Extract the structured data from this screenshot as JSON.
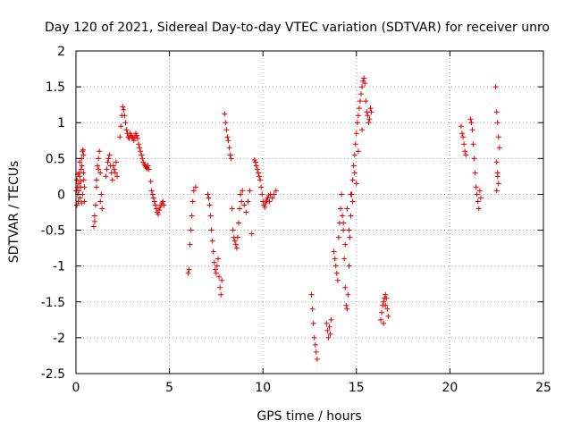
{
  "chart_data": {
    "type": "scatter",
    "title": "Day 120 of 2021, Sidereal Day-to-day VTEC variation (SDTVAR) for receiver unro",
    "xlabel": "GPS time / hours",
    "ylabel": "SDTVAR / TECUs",
    "xlim": [
      0,
      25
    ],
    "ylim": [
      -2.5,
      2
    ],
    "xticks": [
      0,
      5,
      10,
      15,
      20,
      25
    ],
    "yticks": [
      -2.5,
      -2,
      -1.5,
      -1,
      -0.5,
      0,
      0.5,
      1,
      1.5,
      2
    ],
    "xtick_labels": [
      "0",
      "5",
      "10",
      "15",
      "20",
      "25"
    ],
    "ytick_labels": [
      "-2.5",
      "-2",
      "-1.5",
      "-1",
      "-0.5",
      "0",
      "0.5",
      "1",
      "1.5",
      "2"
    ],
    "grid": true,
    "marker": "plus",
    "color": "#e00000",
    "series": [
      {
        "name": "SDTVAR",
        "x": [
          0.02,
          0.05,
          0.08,
          0.1,
          0.12,
          0.15,
          0.18,
          0.2,
          0.22,
          0.25,
          0.28,
          0.3,
          0.32,
          0.35,
          0.38,
          0.4,
          0.42,
          0.45,
          0.05,
          0.1,
          0.15,
          0.2,
          0.25,
          0.3,
          0.35,
          0.4,
          0.45,
          0.95,
          1.0,
          1.05,
          1.1,
          1.15,
          1.2,
          1.25,
          1.3,
          1.35,
          1.4,
          1.0,
          1.1,
          1.2,
          1.3,
          1.6,
          1.65,
          1.7,
          1.75,
          1.8,
          1.85,
          1.9,
          1.95,
          2.0,
          2.05,
          2.1,
          2.15,
          2.2,
          2.35,
          2.4,
          2.45,
          2.5,
          2.55,
          2.6,
          2.65,
          2.7,
          2.75,
          2.8,
          2.85,
          2.9,
          2.95,
          3.0,
          3.05,
          3.1,
          3.15,
          3.2,
          3.25,
          3.3,
          3.35,
          3.4,
          3.45,
          3.5,
          3.55,
          3.6,
          3.65,
          3.7,
          3.75,
          3.8,
          3.85,
          3.9,
          4.0,
          4.05,
          4.1,
          4.15,
          4.2,
          4.25,
          4.3,
          4.35,
          4.4,
          4.45,
          4.5,
          4.55,
          4.6,
          4.65,
          4.7,
          6.0,
          6.05,
          6.1,
          6.15,
          6.2,
          6.25,
          6.3,
          6.4,
          7.05,
          7.1,
          7.15,
          7.2,
          7.25,
          7.3,
          7.35,
          7.4,
          7.45,
          7.5,
          7.55,
          7.6,
          7.65,
          7.7,
          7.75,
          7.8,
          7.95,
          8.0,
          8.05,
          8.1,
          8.15,
          8.2,
          8.25,
          8.3,
          8.35,
          8.4,
          8.45,
          8.5,
          8.55,
          8.6,
          8.65,
          8.7,
          8.75,
          8.8,
          8.85,
          8.9,
          9.0,
          9.1,
          9.2,
          9.3,
          9.4,
          9.55,
          9.6,
          9.65,
          9.7,
          9.75,
          9.8,
          9.85,
          9.9,
          9.95,
          10.0,
          10.05,
          10.1,
          10.15,
          10.2,
          10.25,
          10.3,
          10.35,
          10.4,
          10.5,
          10.6,
          10.7,
          12.6,
          12.65,
          12.7,
          12.75,
          12.8,
          12.85,
          12.9,
          13.4,
          13.45,
          13.5,
          13.55,
          13.6,
          13.65,
          13.8,
          13.85,
          13.9,
          13.95,
          14.0,
          14.05,
          14.1,
          14.15,
          14.2,
          14.25,
          14.3,
          14.35,
          14.4,
          14.45,
          14.5,
          14.55,
          14.6,
          14.65,
          14.7,
          14.75,
          14.8,
          14.85,
          14.9,
          14.95,
          15.0,
          15.05,
          15.1,
          15.15,
          15.2,
          15.25,
          15.3,
          15.35,
          15.4,
          15.45,
          15.5,
          15.55,
          15.6,
          15.65,
          15.7,
          15.75,
          15.8,
          14.3,
          14.5,
          14.7,
          14.9,
          15.1,
          15.3,
          14.4,
          14.6,
          14.8,
          15.0,
          16.3,
          16.35,
          16.4,
          16.45,
          16.5,
          16.55,
          16.6,
          16.65,
          16.7,
          16.45,
          16.55,
          20.6,
          20.65,
          20.7,
          20.75,
          20.8,
          20.85,
          21.1,
          21.15,
          21.2,
          21.25,
          21.3,
          21.35,
          21.4,
          21.45,
          21.5,
          21.55,
          21.6,
          21.65,
          22.45,
          22.5,
          22.55,
          22.6,
          22.65,
          22.5,
          22.55,
          22.6,
          22.5,
          22.55
        ],
        "y": [
          0.05,
          0.2,
          0.1,
          0.0,
          -0.1,
          0.15,
          0.3,
          0.25,
          -0.05,
          0.1,
          0.35,
          0.5,
          0.4,
          0.6,
          0.62,
          0.55,
          0.2,
          -0.1,
          -0.15,
          0.28,
          0.05,
          0.45,
          0.18,
          -0.12,
          0.0,
          0.3,
          0.1,
          -0.45,
          -0.3,
          -0.15,
          0.2,
          0.4,
          0.5,
          0.6,
          0.3,
          0.0,
          -0.2,
          -0.38,
          0.1,
          0.35,
          -0.1,
          0.25,
          0.35,
          0.45,
          0.5,
          0.55,
          0.4,
          0.3,
          0.2,
          0.4,
          0.35,
          0.3,
          0.45,
          0.25,
          0.8,
          0.95,
          1.1,
          1.22,
          1.18,
          1.1,
          1.0,
          0.9,
          0.85,
          0.8,
          0.78,
          0.85,
          0.82,
          0.8,
          0.78,
          0.75,
          0.8,
          0.85,
          0.82,
          0.78,
          0.7,
          0.65,
          0.6,
          0.55,
          0.5,
          0.45,
          0.42,
          0.4,
          0.38,
          0.36,
          0.4,
          0.35,
          0.18,
          0.05,
          0.0,
          -0.05,
          -0.1,
          -0.15,
          -0.2,
          -0.25,
          -0.28,
          -0.22,
          -0.18,
          -0.15,
          -0.12,
          -0.1,
          -0.15,
          -1.1,
          -1.05,
          -0.7,
          -0.5,
          -0.3,
          -0.1,
          0.05,
          0.1,
          0.0,
          -0.05,
          -0.15,
          -0.3,
          -0.5,
          -0.65,
          -0.8,
          -0.95,
          -1.05,
          -1.1,
          -1.0,
          -0.9,
          -1.15,
          -1.3,
          -1.4,
          -1.2,
          1.12,
          1.0,
          0.9,
          0.8,
          0.75,
          0.65,
          0.55,
          0.5,
          -0.2,
          -0.5,
          -0.6,
          -0.65,
          -0.7,
          -0.75,
          -0.6,
          -0.4,
          -0.2,
          0.0,
          -0.1,
          0.05,
          -0.15,
          -0.25,
          -0.1,
          0.05,
          -0.55,
          0.48,
          0.45,
          0.4,
          0.35,
          0.3,
          0.25,
          0.2,
          0.1,
          0.0,
          -0.1,
          -0.15,
          -0.18,
          -0.12,
          -0.08,
          -0.05,
          -0.02,
          -0.1,
          0.0,
          -0.05,
          0.0,
          0.05,
          -1.4,
          -1.6,
          -1.8,
          -2.0,
          -2.1,
          -2.2,
          -2.3,
          -1.8,
          -1.9,
          -2.0,
          -1.85,
          -1.95,
          -1.75,
          -0.8,
          -0.9,
          -1.0,
          -1.1,
          -1.2,
          -0.6,
          -0.4,
          -0.2,
          0.0,
          -0.3,
          -0.5,
          -0.9,
          -1.3,
          -1.55,
          -1.6,
          -1.4,
          -1.0,
          -0.6,
          -0.3,
          0.0,
          0.2,
          0.4,
          0.55,
          0.7,
          0.85,
          1.0,
          1.1,
          1.2,
          1.3,
          1.4,
          1.5,
          1.58,
          1.62,
          1.55,
          1.3,
          1.15,
          1.1,
          1.0,
          1.05,
          1.2,
          1.15,
          -0.4,
          -0.2,
          0.0,
          0.3,
          0.6,
          0.9,
          -0.7,
          -0.5,
          -0.1,
          0.15,
          -1.75,
          -1.65,
          -1.55,
          -1.5,
          -1.45,
          -1.4,
          -1.45,
          -1.6,
          -1.7,
          -1.8,
          -1.55,
          0.95,
          0.85,
          0.8,
          0.7,
          0.6,
          0.55,
          1.05,
          1.0,
          0.9,
          0.7,
          0.5,
          0.3,
          0.1,
          0.0,
          -0.1,
          -0.2,
          0.05,
          -0.05,
          1.5,
          1.15,
          1.0,
          0.8,
          0.65,
          0.45,
          0.3,
          0.15,
          0.05,
          0.25
        ]
      }
    ]
  }
}
